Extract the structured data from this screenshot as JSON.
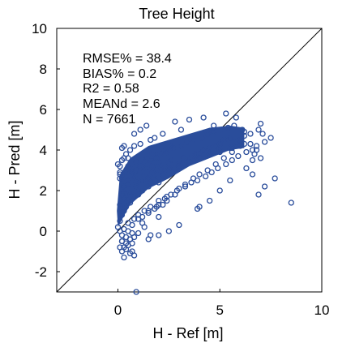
{
  "chart_data": {
    "type": "scatter",
    "title": "Tree Height",
    "xlabel": "H - Ref [m]",
    "ylabel": "H - Pred [m]",
    "xlim": [
      -3,
      10
    ],
    "ylim": [
      -3,
      10
    ],
    "xticks": [
      0,
      5,
      10
    ],
    "yticks": [
      -2,
      0,
      2,
      4,
      6,
      8,
      10
    ],
    "grid": false,
    "legend": "none",
    "reference_line": "1:1",
    "colors": {
      "points": "#2a4d9b",
      "reference_line": "#000000",
      "axes": "#000000"
    },
    "annotations": [
      "RMSE% = 38.4",
      "BIAS% = 0.2",
      "R2 = 0.58",
      "MEANd = 2.6",
      "N = 7661"
    ],
    "series": [
      {
        "x": [
          0.1,
          0.2,
          0.3,
          0.4,
          0.5,
          0.6,
          0.8,
          1.0,
          1.2,
          1.5,
          1.8,
          2.0,
          2.2,
          2.5,
          2.8,
          3.0,
          3.2,
          3.5,
          3.8,
          4.0,
          4.2,
          4.5,
          4.8,
          5.0,
          5.2,
          5.5,
          5.8,
          6.0,
          6.2,
          6.5,
          0.2,
          0.3,
          0.5,
          0.7,
          0.9,
          1.1,
          1.3,
          1.6,
          1.9,
          2.1,
          2.4,
          2.7,
          3.1,
          3.4,
          3.7,
          4.1,
          4.4,
          4.7,
          5.1,
          5.4,
          5.7,
          6.1,
          0.1,
          0.4,
          0.6,
          0.9,
          1.4,
          1.7,
          2.3,
          2.6,
          0.0,
          0.1,
          0.2,
          0.3,
          0.5,
          0.8,
          1.0,
          1.3,
          1.6,
          2.0,
          2.4,
          2.9,
          3.3,
          3.6,
          3.9,
          4.3,
          4.6,
          4.9,
          5.3,
          5.6,
          5.9,
          6.3,
          6.6,
          0.2,
          0.4,
          0.7,
          1.2,
          1.5,
          2.2,
          2.8,
          0.1,
          0.3,
          0.6,
          0.9,
          1.2,
          1.5,
          1.8,
          2.1,
          2.5,
          3.0,
          3.5,
          4.0,
          4.5,
          5.0,
          5.5,
          6.0,
          0.2,
          0.5,
          0.8,
          1.1,
          1.4,
          1.7,
          2.0,
          2.6,
          3.2,
          3.8,
          4.4,
          5.0,
          5.6,
          6.2,
          0.1,
          0.2,
          0.4,
          0.6,
          0.3,
          0.5,
          0.2,
          0.1,
          0.4,
          0.3,
          0.2,
          0.6,
          0.5,
          0.7,
          0.8,
          0.4,
          0.3,
          0.2,
          0.1,
          0.0,
          1.0,
          1.2,
          1.5,
          1.8,
          2.0,
          2.3,
          2.6,
          3.0,
          3.3,
          3.7,
          4.0,
          4.4,
          4.8,
          5.2,
          5.6,
          0.9,
          1.3,
          1.7,
          2.1,
          2.5,
          0.8,
          1.1,
          1.4,
          0.7,
          1.0,
          1.6,
          1.3,
          0.6,
          2.0,
          1.9,
          6.6,
          6.8,
          7.0,
          6.9,
          7.2,
          7.5,
          6.7,
          7.1,
          8.5,
          7.7,
          7.2,
          6.9,
          6.6,
          6.3,
          7.0,
          6.8,
          6.5,
          6.2,
          0.4,
          0.3,
          0.6,
          0.5,
          0.1,
          0.2,
          0.7,
          0.8,
          2.5,
          3.0,
          4.0,
          4.5,
          1.5,
          2.0,
          5.0,
          5.5,
          3.5,
          4.2,
          2.8,
          5.3,
          0.2,
          0.5,
          1.8,
          0.9,
          2.4,
          3.9,
          0.3,
          0.8,
          1.1,
          1.6,
          2.2,
          3.1,
          4.7,
          5.8
        ],
        "y": [
          0.5,
          0.8,
          1.0,
          1.2,
          1.5,
          1.4,
          1.7,
          1.8,
          2.0,
          2.2,
          2.5,
          2.4,
          2.8,
          3.0,
          3.1,
          3.2,
          3.3,
          3.6,
          3.7,
          3.8,
          4.0,
          4.1,
          4.2,
          4.3,
          4.5,
          4.6,
          4.4,
          4.5,
          4.7,
          4.8,
          1.8,
          2.2,
          2.5,
          2.8,
          3.0,
          3.2,
          3.4,
          3.5,
          3.6,
          3.8,
          3.9,
          4.1,
          4.2,
          4.4,
          4.5,
          4.6,
          4.8,
          4.9,
          5.0,
          5.1,
          5.2,
          5.0,
          2.6,
          2.9,
          3.1,
          3.4,
          3.6,
          3.8,
          4.0,
          4.2,
          0.2,
          0.0,
          -0.2,
          0.1,
          0.4,
          0.6,
          0.8,
          1.0,
          1.2,
          1.5,
          1.7,
          2.0,
          2.2,
          2.4,
          2.5,
          2.7,
          2.9,
          3.1,
          3.3,
          3.5,
          3.7,
          3.9,
          4.0,
          -0.5,
          -0.3,
          0.3,
          0.7,
          1.0,
          1.3,
          1.8,
          1.3,
          1.6,
          1.9,
          2.2,
          2.5,
          2.6,
          2.8,
          3.0,
          3.1,
          3.3,
          3.4,
          3.6,
          3.8,
          3.9,
          4.1,
          4.2,
          2.0,
          2.3,
          2.7,
          2.9,
          3.1,
          3.2,
          3.4,
          3.5,
          3.6,
          3.8,
          3.9,
          4.0,
          4.1,
          4.3,
          3.2,
          3.5,
          3.8,
          4.0,
          4.2,
          3.6,
          4.1,
          2.8,
          -0.6,
          -0.8,
          -1.0,
          -0.4,
          0.0,
          -0.1,
          -0.3,
          1.8,
          2.2,
          2.6,
          2.9,
          3.3,
          0.6,
          0.4,
          0.9,
          1.1,
          1.3,
          1.6,
          1.8,
          2.1,
          2.3,
          2.6,
          2.8,
          3.0,
          3.3,
          3.6,
          3.9,
          2.4,
          2.7,
          2.9,
          3.2,
          3.4,
          4.8,
          5.0,
          5.2,
          -0.6,
          -0.1,
          -0.2,
          0.2,
          -0.4,
          0.7,
          1.2,
          3.5,
          4.2,
          5.3,
          5.0,
          4.4,
          4.6,
          3.8,
          4.8,
          1.4,
          2.6,
          2.2,
          1.8,
          2.8,
          3.1,
          3.6,
          4.0,
          4.3,
          4.9,
          -0.9,
          -1.3,
          -1.1,
          -0.7,
          -0.8,
          -0.5,
          -1.0,
          -1.2,
          0.0,
          0.3,
          1.2,
          1.5,
          -0.4,
          -0.2,
          2.0,
          2.5,
          5.5,
          5.6,
          5.4,
          5.8,
          1.0,
          3.2,
          4.6,
          -3.0,
          1.5,
          1.1,
          3.6,
          4.2,
          4.3,
          4.5,
          4.8,
          5.0,
          5.2,
          5.6
        ]
      }
    ]
  }
}
